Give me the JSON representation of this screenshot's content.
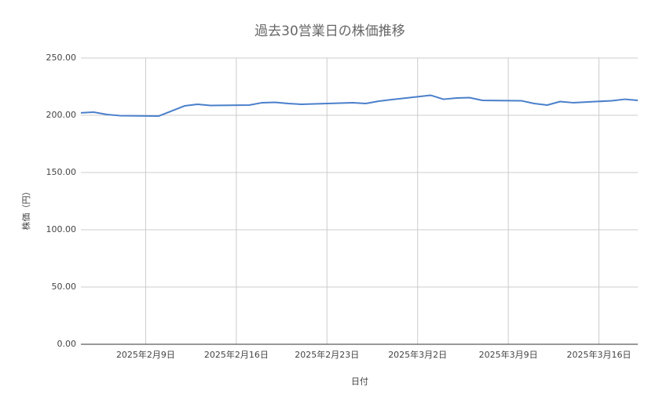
{
  "chart_data": {
    "type": "line",
    "title": "過去30営業日の株価推移",
    "x_label": "日付",
    "y_label": "株価（円）",
    "x": [
      "2025-02-04",
      "2025-02-05",
      "2025-02-06",
      "2025-02-07",
      "2025-02-10",
      "2025-02-12",
      "2025-02-13",
      "2025-02-14",
      "2025-02-17",
      "2025-02-18",
      "2025-02-19",
      "2025-02-20",
      "2025-02-21",
      "2025-02-25",
      "2025-02-26",
      "2025-02-27",
      "2025-02-28",
      "2025-03-03",
      "2025-03-04",
      "2025-03-05",
      "2025-03-06",
      "2025-03-07",
      "2025-03-10",
      "2025-03-11",
      "2025-03-12",
      "2025-03-13",
      "2025-03-14",
      "2025-03-17",
      "2025-03-18",
      "2025-03-19"
    ],
    "series": [
      {
        "color": "#4a7fcb",
        "values": [
          202.1,
          202.7,
          200.7,
          199.7,
          199.3,
          208.2,
          209.6,
          208.6,
          208.9,
          211,
          211.3,
          210.3,
          209.6,
          211,
          210.3,
          212.3,
          213.7,
          217.5,
          214,
          215.1,
          215.4,
          213,
          212.7,
          210.3,
          208.9,
          212,
          211,
          212.7,
          214,
          213
        ]
      }
    ],
    "xlim": [
      "2025-02-04",
      "2025-03-19"
    ],
    "xticks": [
      {
        "value": "2025-02-09",
        "label": "2025年2月9日"
      },
      {
        "value": "2025-02-16",
        "label": "2025年2月16日"
      },
      {
        "value": "2025-02-23",
        "label": "2025年2月23日"
      },
      {
        "value": "2025-03-02",
        "label": "2025年3月2日"
      },
      {
        "value": "2025-03-09",
        "label": "2025年3月9日"
      },
      {
        "value": "2025-03-16",
        "label": "2025年3月16日"
      }
    ],
    "ylim": [
      0,
      250
    ],
    "yticks": [
      {
        "value": 0,
        "label": "0.00"
      },
      {
        "value": 50,
        "label": "50.00"
      },
      {
        "value": 100,
        "label": "100.00"
      },
      {
        "value": 150,
        "label": "150.00"
      },
      {
        "value": 200,
        "label": "200.00"
      },
      {
        "value": 250,
        "label": "250.00"
      }
    ],
    "grid": true
  }
}
